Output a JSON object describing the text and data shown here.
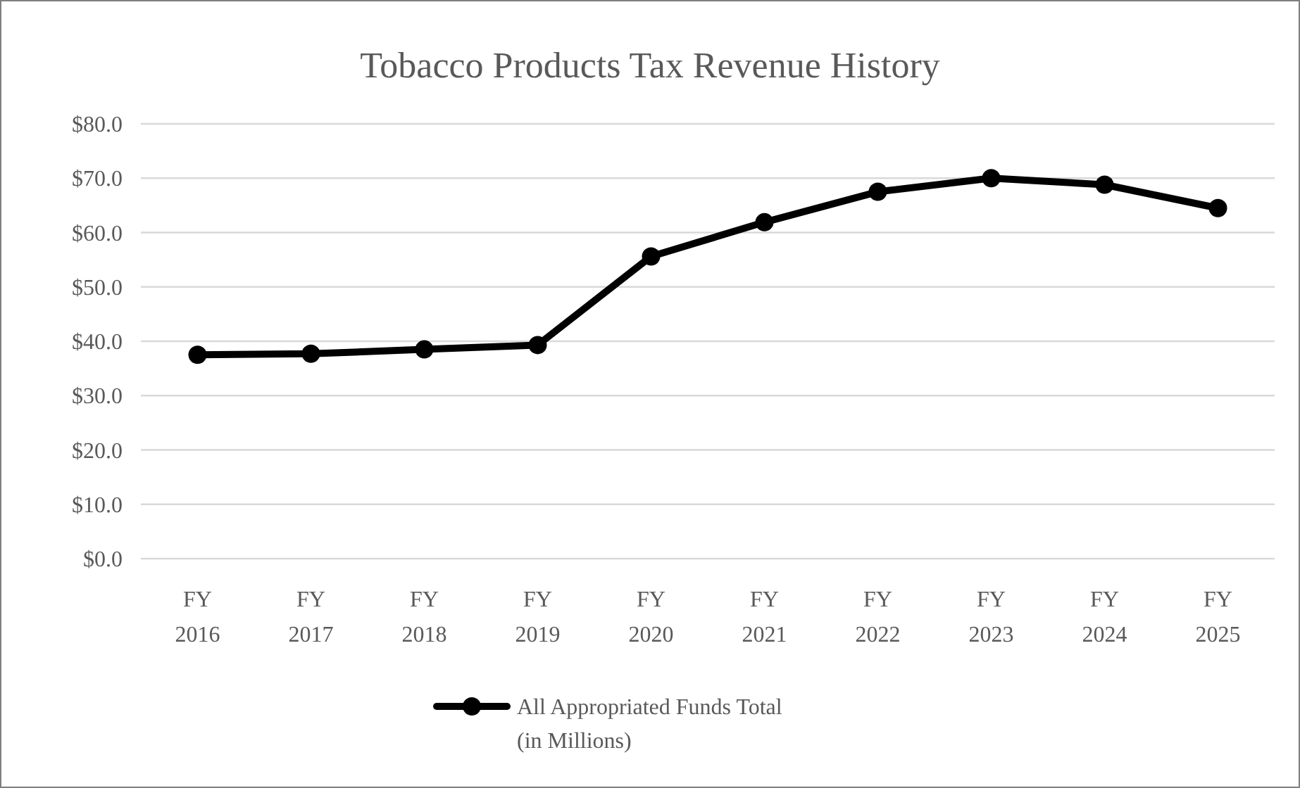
{
  "chart_data": {
    "type": "line",
    "title": "Tobacco Products Tax Revenue History",
    "categories": [
      "FY 2016",
      "FY 2017",
      "FY 2018",
      "FY 2019",
      "FY 2020",
      "FY 2021",
      "FY 2022",
      "FY 2023",
      "FY 2024",
      "FY 2025"
    ],
    "series": [
      {
        "name": "All Appropriated Funds Total (in Millions)",
        "color": "#000000",
        "values": [
          37.5,
          37.7,
          38.5,
          39.3,
          55.6,
          61.9,
          67.5,
          70.0,
          68.8,
          64.5
        ]
      }
    ],
    "ylim": [
      0,
      80
    ],
    "yticks": [
      {
        "value": 0,
        "label": "$0.0"
      },
      {
        "value": 10,
        "label": "$10.0"
      },
      {
        "value": 20,
        "label": "$20.0"
      },
      {
        "value": 30,
        "label": "$30.0"
      },
      {
        "value": 40,
        "label": "$40.0"
      },
      {
        "value": 50,
        "label": "$50.0"
      },
      {
        "value": 60,
        "label": "$60.0"
      },
      {
        "value": 70,
        "label": "$70.0"
      },
      {
        "value": 80,
        "label": "$80.0"
      }
    ],
    "grid": "y",
    "legend": "bottom",
    "marker": "circle",
    "line_style": "solid"
  }
}
